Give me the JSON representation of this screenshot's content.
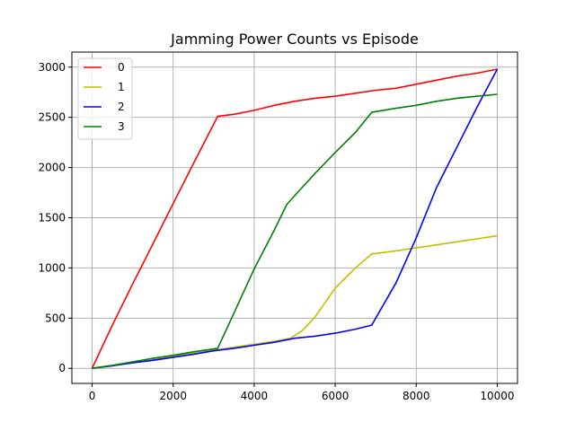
{
  "chart_data": {
    "type": "line",
    "title": "Jamming Power Counts vs Episode",
    "xlabel": "",
    "ylabel": "",
    "xlim": [
      -500,
      10500
    ],
    "ylim": [
      -150,
      3150
    ],
    "xticks": [
      0,
      2000,
      4000,
      6000,
      8000,
      10000
    ],
    "yticks": [
      0,
      500,
      1000,
      1500,
      2000,
      2500,
      3000
    ],
    "grid": true,
    "legend_position": "top-left",
    "series": [
      {
        "name": "0",
        "color": "#ff0000",
        "points": [
          [
            0,
            0
          ],
          [
            500,
            430
          ],
          [
            1000,
            840
          ],
          [
            1500,
            1240
          ],
          [
            2000,
            1640
          ],
          [
            2500,
            2040
          ],
          [
            3100,
            2510
          ],
          [
            3500,
            2530
          ],
          [
            4000,
            2570
          ],
          [
            4500,
            2620
          ],
          [
            5000,
            2660
          ],
          [
            5500,
            2690
          ],
          [
            6000,
            2710
          ],
          [
            6500,
            2740
          ],
          [
            7000,
            2770
          ],
          [
            7500,
            2790
          ],
          [
            8000,
            2830
          ],
          [
            8500,
            2870
          ],
          [
            9000,
            2910
          ],
          [
            9500,
            2940
          ],
          [
            10000,
            2980
          ]
        ]
      },
      {
        "name": "1",
        "color": "#bfbf00",
        "points": [
          [
            0,
            0
          ],
          [
            500,
            30
          ],
          [
            1000,
            60
          ],
          [
            1500,
            90
          ],
          [
            2000,
            120
          ],
          [
            2500,
            150
          ],
          [
            3000,
            180
          ],
          [
            3500,
            210
          ],
          [
            4000,
            240
          ],
          [
            4500,
            270
          ],
          [
            4900,
            300
          ],
          [
            5200,
            380
          ],
          [
            5500,
            510
          ],
          [
            6000,
            800
          ],
          [
            6500,
            1000
          ],
          [
            6900,
            1140
          ],
          [
            7500,
            1170
          ],
          [
            8000,
            1200
          ],
          [
            8500,
            1230
          ],
          [
            9000,
            1260
          ],
          [
            9500,
            1290
          ],
          [
            10000,
            1320
          ]
        ]
      },
      {
        "name": "2",
        "color": "#0000ff",
        "points": [
          [
            0,
            0
          ],
          [
            500,
            25
          ],
          [
            1000,
            55
          ],
          [
            1500,
            80
          ],
          [
            2000,
            110
          ],
          [
            2500,
            140
          ],
          [
            3000,
            175
          ],
          [
            3500,
            200
          ],
          [
            4000,
            230
          ],
          [
            4500,
            260
          ],
          [
            5000,
            300
          ],
          [
            5500,
            320
          ],
          [
            6000,
            350
          ],
          [
            6500,
            390
          ],
          [
            6900,
            430
          ],
          [
            7500,
            850
          ],
          [
            8000,
            1300
          ],
          [
            8500,
            1800
          ],
          [
            9000,
            2200
          ],
          [
            9500,
            2600
          ],
          [
            10000,
            2980
          ]
        ]
      },
      {
        "name": "3",
        "color": "#008000",
        "points": [
          [
            0,
            0
          ],
          [
            500,
            30
          ],
          [
            1000,
            65
          ],
          [
            1500,
            100
          ],
          [
            2000,
            130
          ],
          [
            2500,
            165
          ],
          [
            3100,
            200
          ],
          [
            3500,
            550
          ],
          [
            4000,
            990
          ],
          [
            4500,
            1380
          ],
          [
            4800,
            1630
          ],
          [
            5000,
            1720
          ],
          [
            5500,
            1940
          ],
          [
            6000,
            2150
          ],
          [
            6500,
            2350
          ],
          [
            6900,
            2550
          ],
          [
            7500,
            2590
          ],
          [
            8000,
            2620
          ],
          [
            8500,
            2660
          ],
          [
            9000,
            2690
          ],
          [
            9500,
            2710
          ],
          [
            10000,
            2730
          ]
        ]
      }
    ]
  }
}
